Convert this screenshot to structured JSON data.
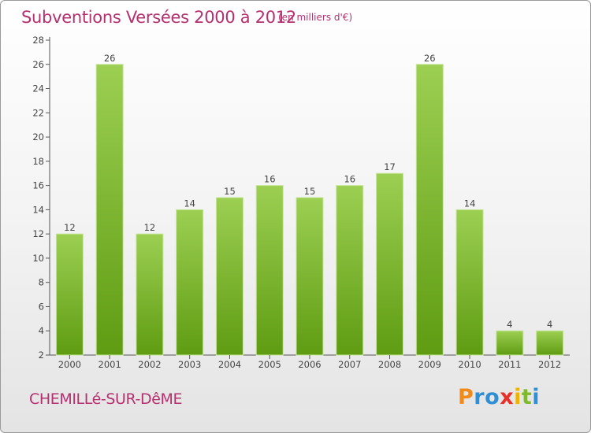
{
  "header": {
    "title": "Subventions Versées 2000 à 2012",
    "unit_note": "(en milliers d'€)"
  },
  "footer": {
    "commune": "CHEMILLé-SUR-DêME",
    "logo_letters": [
      "P",
      "r",
      "o",
      "x",
      "i",
      "t",
      "i"
    ],
    "logo_colors": [
      "#f08a1c",
      "#2f8fd6",
      "#2f8fd6",
      "#e8302a",
      "#f0b400",
      "#7fba2a",
      "#2f8fd6"
    ]
  },
  "colors": {
    "bar_top": "#9ccf52",
    "bar_bottom": "#5f9c12",
    "bar_border": "#c6e69a",
    "axis": "#555555",
    "label": "#444444"
  },
  "chart_data": {
    "type": "bar",
    "title": "Subventions Versées 2000 à 2012",
    "subtitle": "(en milliers d'€)",
    "xlabel": "",
    "ylabel": "",
    "categories": [
      "2000",
      "2001",
      "2002",
      "2003",
      "2004",
      "2005",
      "2006",
      "2007",
      "2008",
      "2009",
      "2010",
      "2011",
      "2012"
    ],
    "values": [
      12,
      26,
      12,
      14,
      15,
      16,
      15,
      16,
      17,
      26,
      14,
      4,
      4
    ],
    "ylim": [
      2,
      28
    ],
    "yticks": [
      2,
      4,
      6,
      8,
      10,
      12,
      14,
      16,
      18,
      20,
      22,
      24,
      26,
      28
    ],
    "grid": false,
    "data_labels": true
  }
}
